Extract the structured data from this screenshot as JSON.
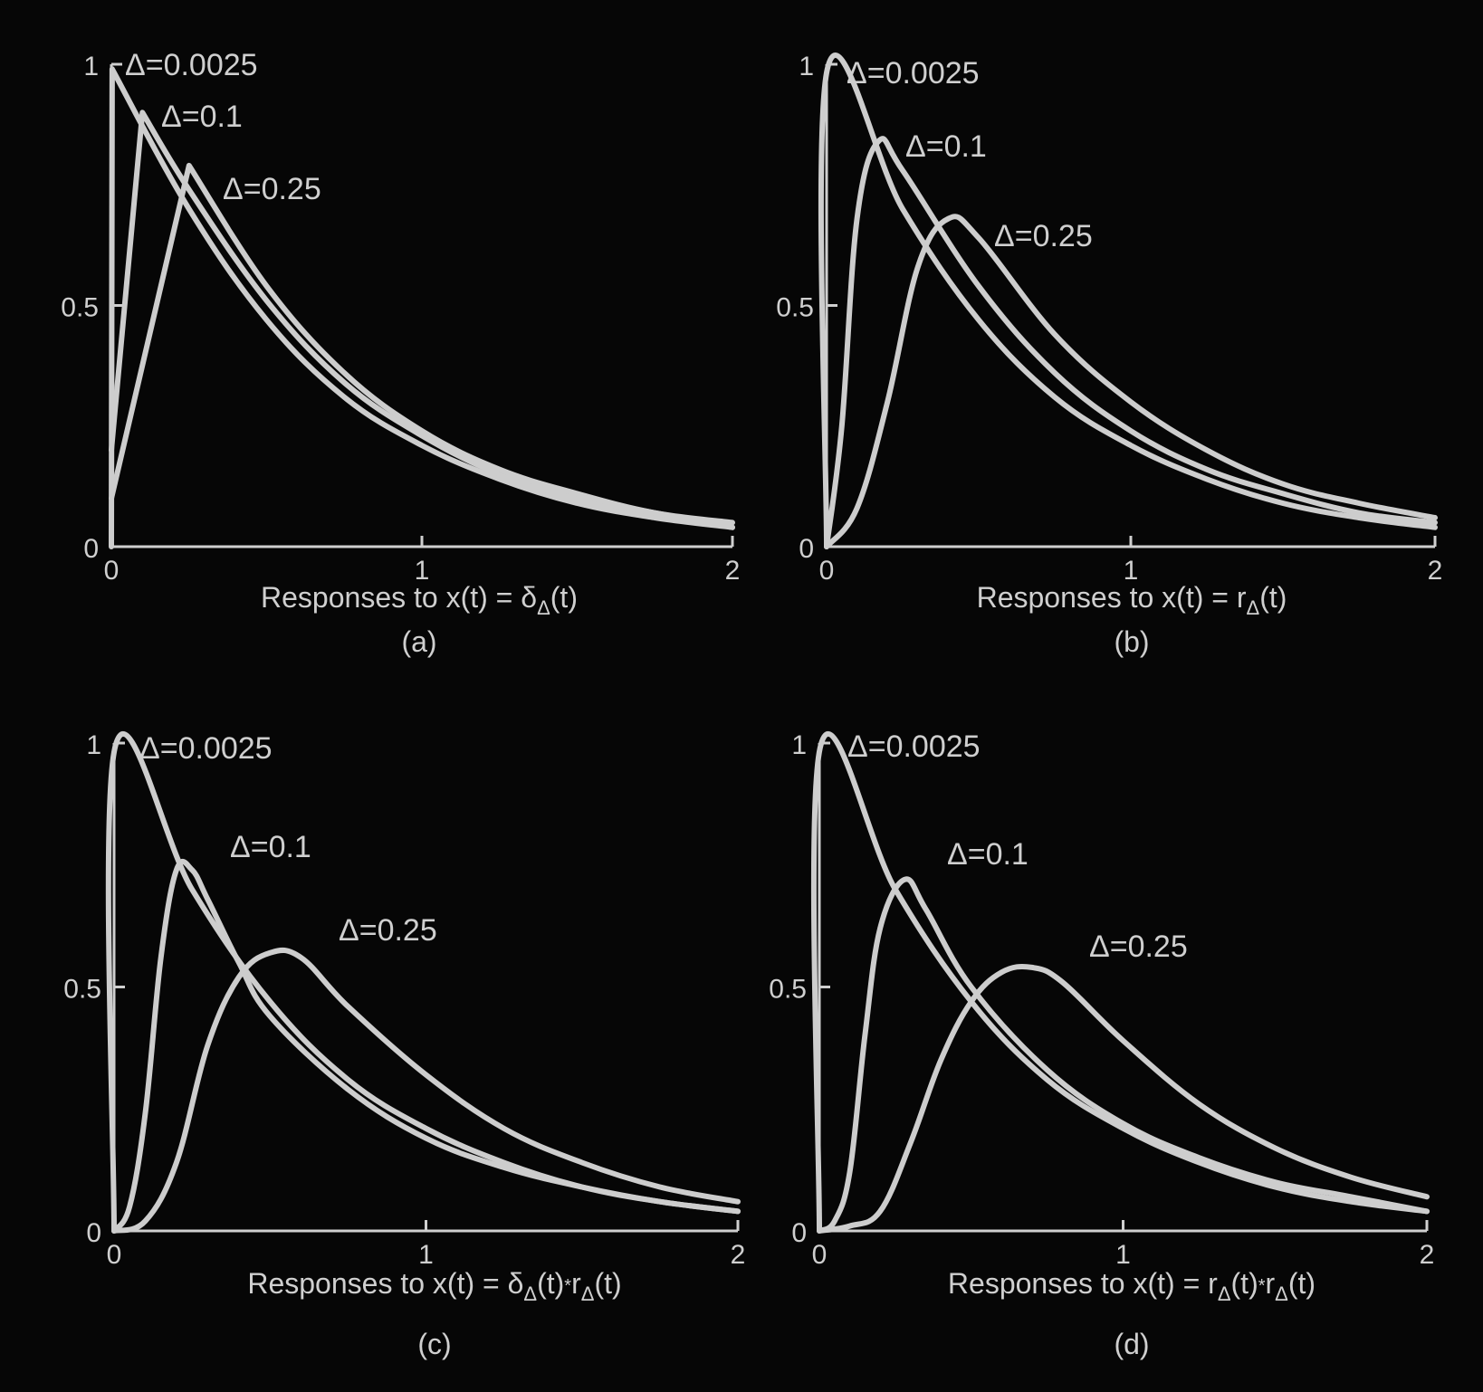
{
  "colors": {
    "background": "#060606",
    "foreground": "#cdcdcd"
  },
  "chart_data": [
    {
      "type": "line",
      "panel": "(a)",
      "xlabel": {
        "prefix": "Responses to x(t) = ",
        "parts": [
          [
            "δ",
            ""
          ],
          [
            "Δ",
            "sub"
          ],
          [
            "(t)",
            ""
          ]
        ]
      },
      "xlim": [
        0,
        2
      ],
      "ylim": [
        0,
        1
      ],
      "xticks": [
        "0",
        "1",
        "2"
      ],
      "yticks": [
        "0",
        "0.5",
        "1"
      ],
      "legend": "inline labels",
      "series": [
        {
          "name": "Δ=0.0025",
          "delta": 0.0025,
          "x": [
            0,
            0.0025,
            0.25,
            0.5,
            0.75,
            1,
            1.25,
            1.5,
            1.75,
            2
          ],
          "y": [
            0,
            0.99,
            0.7,
            0.47,
            0.31,
            0.21,
            0.14,
            0.09,
            0.06,
            0.04
          ]
        },
        {
          "name": "Δ=0.1",
          "delta": 0.1,
          "x": [
            0,
            0.1,
            0.25,
            0.5,
            0.75,
            1,
            1.25,
            1.5,
            1.75,
            2
          ],
          "y": [
            0.2,
            0.9,
            0.74,
            0.51,
            0.34,
            0.23,
            0.15,
            0.1,
            0.07,
            0.04
          ]
        },
        {
          "name": "Δ=0.25",
          "delta": 0.25,
          "x": [
            0,
            0.25,
            0.5,
            0.75,
            1,
            1.25,
            1.5,
            1.75,
            2
          ],
          "y": [
            0.1,
            0.79,
            0.54,
            0.36,
            0.24,
            0.16,
            0.11,
            0.07,
            0.05
          ]
        }
      ]
    },
    {
      "type": "line",
      "panel": "(b)",
      "xlabel": {
        "prefix": "Responses to x(t) = ",
        "parts": [
          [
            "r",
            ""
          ],
          [
            "Δ",
            "sub"
          ],
          [
            "(t)",
            ""
          ]
        ]
      },
      "xlim": [
        0,
        2
      ],
      "ylim": [
        0,
        1
      ],
      "xticks": [
        "0",
        "1",
        "2"
      ],
      "yticks": [
        "0",
        "0.5",
        "1"
      ],
      "legend": "inline labels",
      "series": [
        {
          "name": "Δ=0.0025",
          "delta": 0.0025,
          "x": [
            0,
            0.0025,
            0.25,
            0.5,
            0.75,
            1,
            1.25,
            1.5,
            1.75,
            2
          ],
          "y": [
            0,
            0.99,
            0.7,
            0.47,
            0.31,
            0.21,
            0.14,
            0.09,
            0.06,
            0.04
          ]
        },
        {
          "name": "Δ=0.1",
          "delta": 0.1,
          "x": [
            0,
            0.05,
            0.1,
            0.17,
            0.25,
            0.5,
            0.75,
            1,
            1.25,
            1.5,
            1.75,
            2
          ],
          "y": [
            0,
            0.25,
            0.68,
            0.84,
            0.78,
            0.54,
            0.36,
            0.24,
            0.16,
            0.11,
            0.07,
            0.05
          ]
        },
        {
          "name": "Δ=0.25",
          "delta": 0.25,
          "x": [
            0,
            0.1,
            0.2,
            0.3,
            0.4,
            0.5,
            0.75,
            1,
            1.25,
            1.5,
            1.75,
            2
          ],
          "y": [
            0,
            0.08,
            0.3,
            0.58,
            0.68,
            0.64,
            0.44,
            0.3,
            0.2,
            0.13,
            0.09,
            0.06
          ]
        }
      ]
    },
    {
      "type": "line",
      "panel": "(c)",
      "xlabel": {
        "prefix": "Responses to x(t) = ",
        "parts": [
          [
            "δ",
            ""
          ],
          [
            "Δ",
            "sub"
          ],
          [
            "(t)",
            ""
          ],
          [
            "*",
            "star"
          ],
          [
            "r",
            ""
          ],
          [
            "Δ",
            "sub"
          ],
          [
            "(t)",
            ""
          ]
        ]
      },
      "xlim": [
        0,
        2
      ],
      "ylim": [
        0,
        1
      ],
      "xticks": [
        "0",
        "1",
        "2"
      ],
      "yticks": [
        "0",
        "0.5",
        "1"
      ],
      "legend": "inline labels",
      "series": [
        {
          "name": "Δ=0.0025",
          "delta": 0.0025,
          "x": [
            0,
            0.0025,
            0.25,
            0.5,
            0.75,
            1,
            1.25,
            1.5,
            1.75,
            2
          ],
          "y": [
            0,
            0.99,
            0.7,
            0.47,
            0.31,
            0.21,
            0.14,
            0.09,
            0.06,
            0.04
          ]
        },
        {
          "name": "Δ=0.1",
          "delta": 0.1,
          "x": [
            0,
            0.05,
            0.1,
            0.15,
            0.2,
            0.25,
            0.3,
            0.4,
            0.5,
            0.75,
            1,
            1.25,
            1.5,
            1.75,
            2
          ],
          "y": [
            0,
            0.05,
            0.24,
            0.56,
            0.74,
            0.74,
            0.68,
            0.55,
            0.44,
            0.29,
            0.19,
            0.13,
            0.09,
            0.06,
            0.04
          ]
        },
        {
          "name": "Δ=0.25",
          "delta": 0.25,
          "x": [
            0,
            0.1,
            0.2,
            0.3,
            0.4,
            0.5,
            0.6,
            0.75,
            1,
            1.25,
            1.5,
            1.75,
            2
          ],
          "y": [
            0,
            0.02,
            0.14,
            0.38,
            0.52,
            0.57,
            0.56,
            0.46,
            0.32,
            0.21,
            0.14,
            0.09,
            0.06
          ]
        }
      ]
    },
    {
      "type": "line",
      "panel": "(d)",
      "xlabel": {
        "prefix": "Responses to x(t) = ",
        "parts": [
          [
            "r",
            ""
          ],
          [
            "Δ",
            "sub"
          ],
          [
            "(t)",
            ""
          ],
          [
            "*",
            "star"
          ],
          [
            "r",
            ""
          ],
          [
            "Δ",
            "sub"
          ],
          [
            "(t)",
            ""
          ]
        ]
      },
      "xlim": [
        0,
        2
      ],
      "ylim": [
        0,
        1
      ],
      "xticks": [
        "0",
        "1",
        "2"
      ],
      "yticks": [
        "0",
        "0.5",
        "1"
      ],
      "legend": "inline labels",
      "series": [
        {
          "name": "Δ=0.0025",
          "delta": 0.0025,
          "x": [
            0,
            0.0025,
            0.25,
            0.5,
            0.75,
            1,
            1.25,
            1.5,
            1.75,
            2
          ],
          "y": [
            0,
            0.99,
            0.7,
            0.47,
            0.31,
            0.21,
            0.14,
            0.09,
            0.06,
            0.04
          ]
        },
        {
          "name": "Δ=0.1",
          "delta": 0.1,
          "x": [
            0,
            0.05,
            0.1,
            0.15,
            0.2,
            0.28,
            0.35,
            0.5,
            0.75,
            1,
            1.25,
            1.5,
            1.75,
            2
          ],
          "y": [
            0,
            0.02,
            0.12,
            0.4,
            0.62,
            0.72,
            0.66,
            0.5,
            0.33,
            0.22,
            0.15,
            0.1,
            0.07,
            0.04
          ]
        },
        {
          "name": "Δ=0.25",
          "delta": 0.25,
          "x": [
            0,
            0.1,
            0.2,
            0.3,
            0.4,
            0.5,
            0.6,
            0.7,
            0.8,
            1,
            1.25,
            1.5,
            1.75,
            2
          ],
          "y": [
            0,
            0.01,
            0.04,
            0.18,
            0.35,
            0.47,
            0.53,
            0.54,
            0.51,
            0.39,
            0.26,
            0.17,
            0.11,
            0.07
          ]
        }
      ]
    }
  ]
}
